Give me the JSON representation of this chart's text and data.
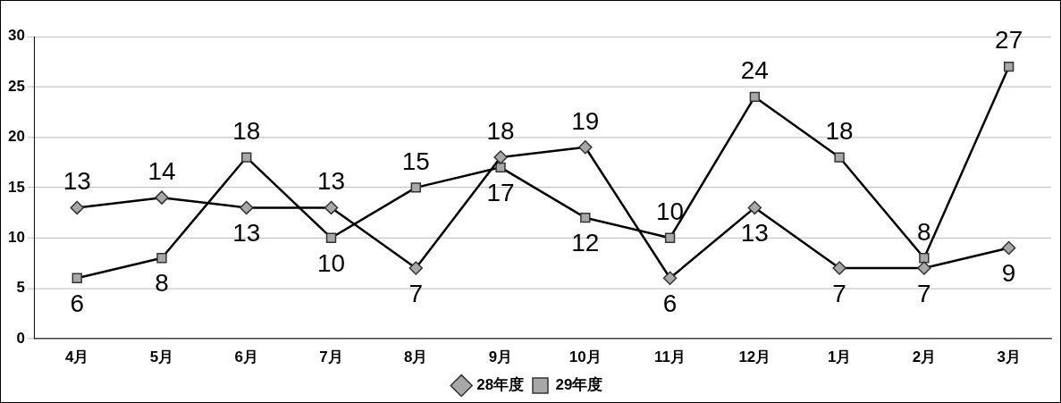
{
  "chart_data": {
    "type": "line",
    "categories": [
      "4月",
      "5月",
      "6月",
      "7月",
      "8月",
      "9月",
      "10月",
      "11月",
      "12月",
      "1月",
      "2月",
      "3月"
    ],
    "series": [
      {
        "name": "28年度",
        "color": "#000000",
        "marker": "diamond",
        "values": [
          13,
          14,
          13,
          13,
          7,
          18,
          19,
          6,
          13,
          7,
          7,
          9
        ]
      },
      {
        "name": "29年度",
        "color": "#000000",
        "marker": "square",
        "values": [
          6,
          8,
          18,
          10,
          15,
          17,
          12,
          10,
          24,
          18,
          8,
          27
        ]
      }
    ],
    "ylim": [
      0,
      30
    ],
    "yticks": [
      0,
      5,
      10,
      15,
      20,
      25,
      30
    ],
    "grid": "y",
    "legend": "bottom",
    "data_labels": true,
    "line_style": "solid"
  }
}
